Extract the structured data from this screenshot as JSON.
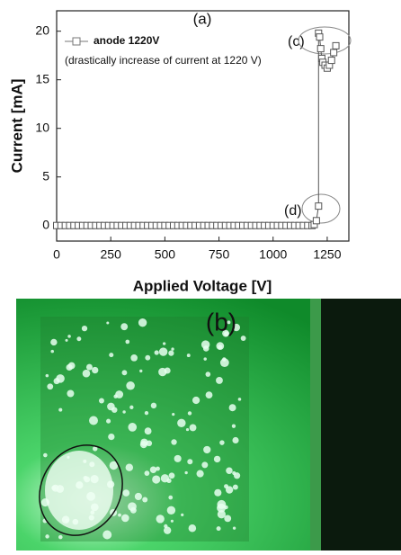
{
  "chart_data": {
    "type": "scatter-line",
    "title": "(a)",
    "xlabel": "Applied Voltage [V]",
    "ylabel": "Current  [mA]",
    "x": [
      0,
      20,
      40,
      60,
      80,
      100,
      120,
      140,
      160,
      180,
      200,
      220,
      240,
      260,
      280,
      300,
      320,
      340,
      360,
      380,
      400,
      420,
      440,
      460,
      480,
      500,
      520,
      540,
      560,
      580,
      600,
      620,
      640,
      660,
      680,
      700,
      720,
      740,
      760,
      780,
      800,
      820,
      840,
      860,
      880,
      900,
      920,
      940,
      960,
      980,
      1000,
      1020,
      1040,
      1060,
      1080,
      1100,
      1120,
      1140,
      1160,
      1180,
      1190,
      1200,
      1210,
      1210,
      1215,
      1220,
      1225,
      1230,
      1240,
      1250,
      1260,
      1270,
      1280,
      1290
    ],
    "series": [
      {
        "name": "anode 1220V",
        "color": "#555555",
        "values": [
          0,
          0,
          0,
          0,
          0,
          0,
          0,
          0,
          0,
          0,
          0,
          0,
          0,
          0,
          0,
          0,
          0,
          0,
          0,
          0,
          0,
          0,
          0,
          0,
          0,
          0,
          0,
          0,
          0,
          0,
          0,
          0,
          0,
          0,
          0,
          0,
          0,
          0,
          0,
          0,
          0,
          0,
          0,
          0,
          0,
          0,
          0,
          0,
          0,
          0,
          0,
          0,
          0,
          0,
          0,
          0,
          0,
          0,
          0,
          0,
          0.1,
          0.5,
          2.0,
          19.8,
          19.4,
          18.2,
          17.2,
          16.8,
          16.5,
          16.2,
          16.5,
          17,
          17.8,
          18.5
        ]
      }
    ],
    "annotations": [
      "(drastically increase of current at 1220 V)",
      "(c)",
      "(d)"
    ],
    "xlim": [
      0,
      1350
    ],
    "xticks": [
      0,
      250,
      500,
      750,
      1000,
      1250
    ],
    "ylim": [
      -1.6,
      22.1
    ],
    "yticks": [
      0,
      5,
      10,
      15,
      20
    ]
  },
  "photo": {
    "label": "(b)"
  }
}
